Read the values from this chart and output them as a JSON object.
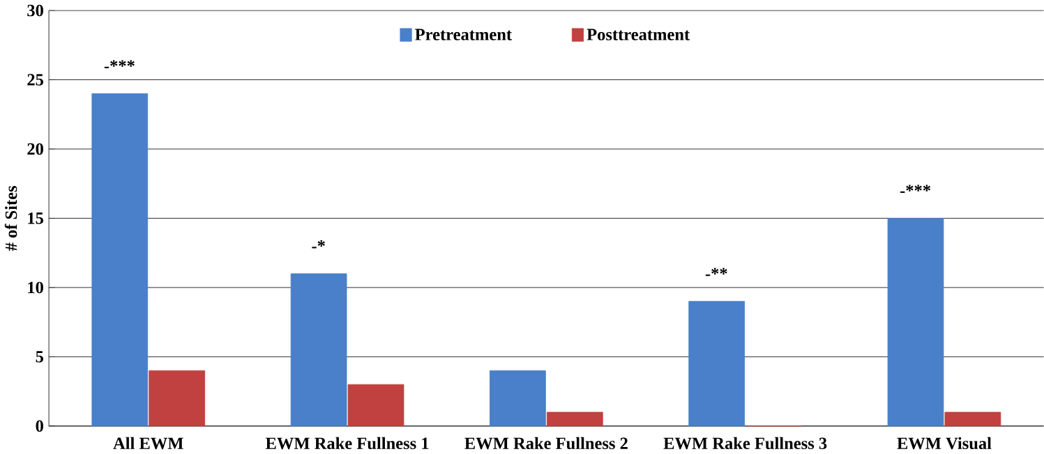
{
  "chart_data": {
    "type": "bar",
    "ylabel": "# of Sites",
    "categories": [
      "All EWM",
      "EWM Rake Fullness 1",
      "EWM Rake Fullness 2",
      "EWM Rake Fullness 3",
      "EWM Visual"
    ],
    "series": [
      {
        "name": "Pretreatment",
        "color": "#4a7fc9",
        "values": [
          24,
          11,
          4,
          9,
          15
        ]
      },
      {
        "name": "Posttreatment",
        "color": "#c0413f",
        "values": [
          4,
          3,
          1,
          0,
          1
        ]
      }
    ],
    "ylim": [
      0,
      30
    ],
    "yticks": [
      0,
      5,
      10,
      15,
      20,
      25,
      30
    ],
    "grid": "y",
    "legend": "top",
    "annotations": [
      {
        "text": "-***",
        "x": "All EWM",
        "y": 24
      },
      {
        "text": "-*",
        "x": "EWM Rake Fullness 1",
        "y": 11
      },
      {
        "text": "-**",
        "x": "EWM Rake Fullness 3",
        "y": 9
      },
      {
        "text": "-***",
        "x": "EWM Visual",
        "y": 15
      }
    ]
  }
}
